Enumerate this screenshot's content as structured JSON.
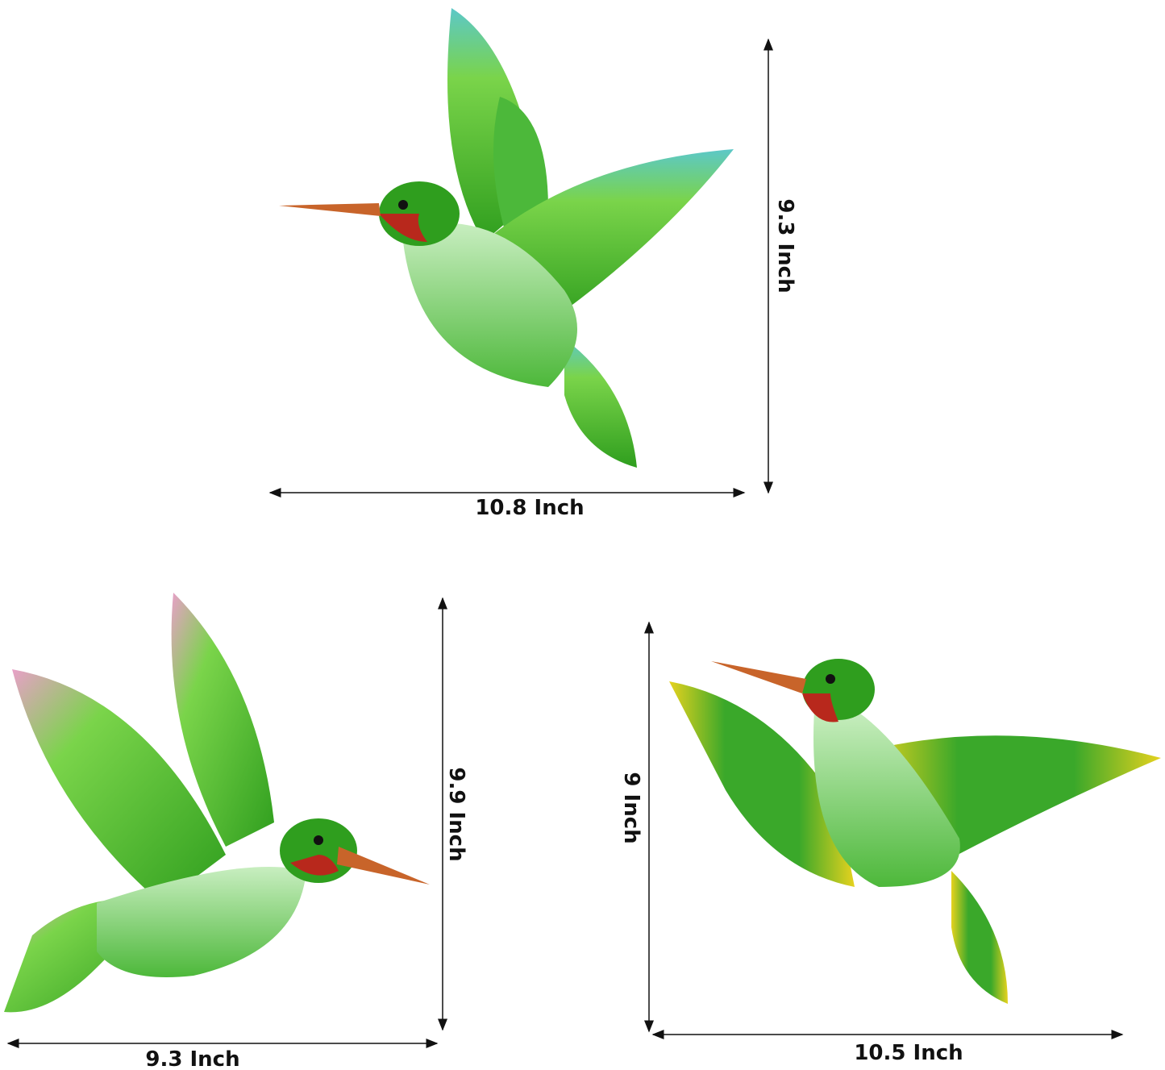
{
  "dimensions": {
    "bird1": {
      "height_label": "9.3 Inch",
      "width_label": "10.8 Inch"
    },
    "bird2": {
      "height_label": "9.9 Inch",
      "width_label": "9.3 Inch"
    },
    "bird3": {
      "height_label": "9 Inch",
      "width_label": "10.5 Inch"
    }
  },
  "colors": {
    "body_green": "#2f9e1e",
    "light_green": "#8fdc5a",
    "throat_red": "#b8281c",
    "beak": "#c8642a",
    "wing_tip_teal": "#5cc8c8",
    "wing_tip_pink": "#e8a0c8",
    "wing_tip_yellow": "#e6d21e",
    "arrow": "#111111"
  }
}
